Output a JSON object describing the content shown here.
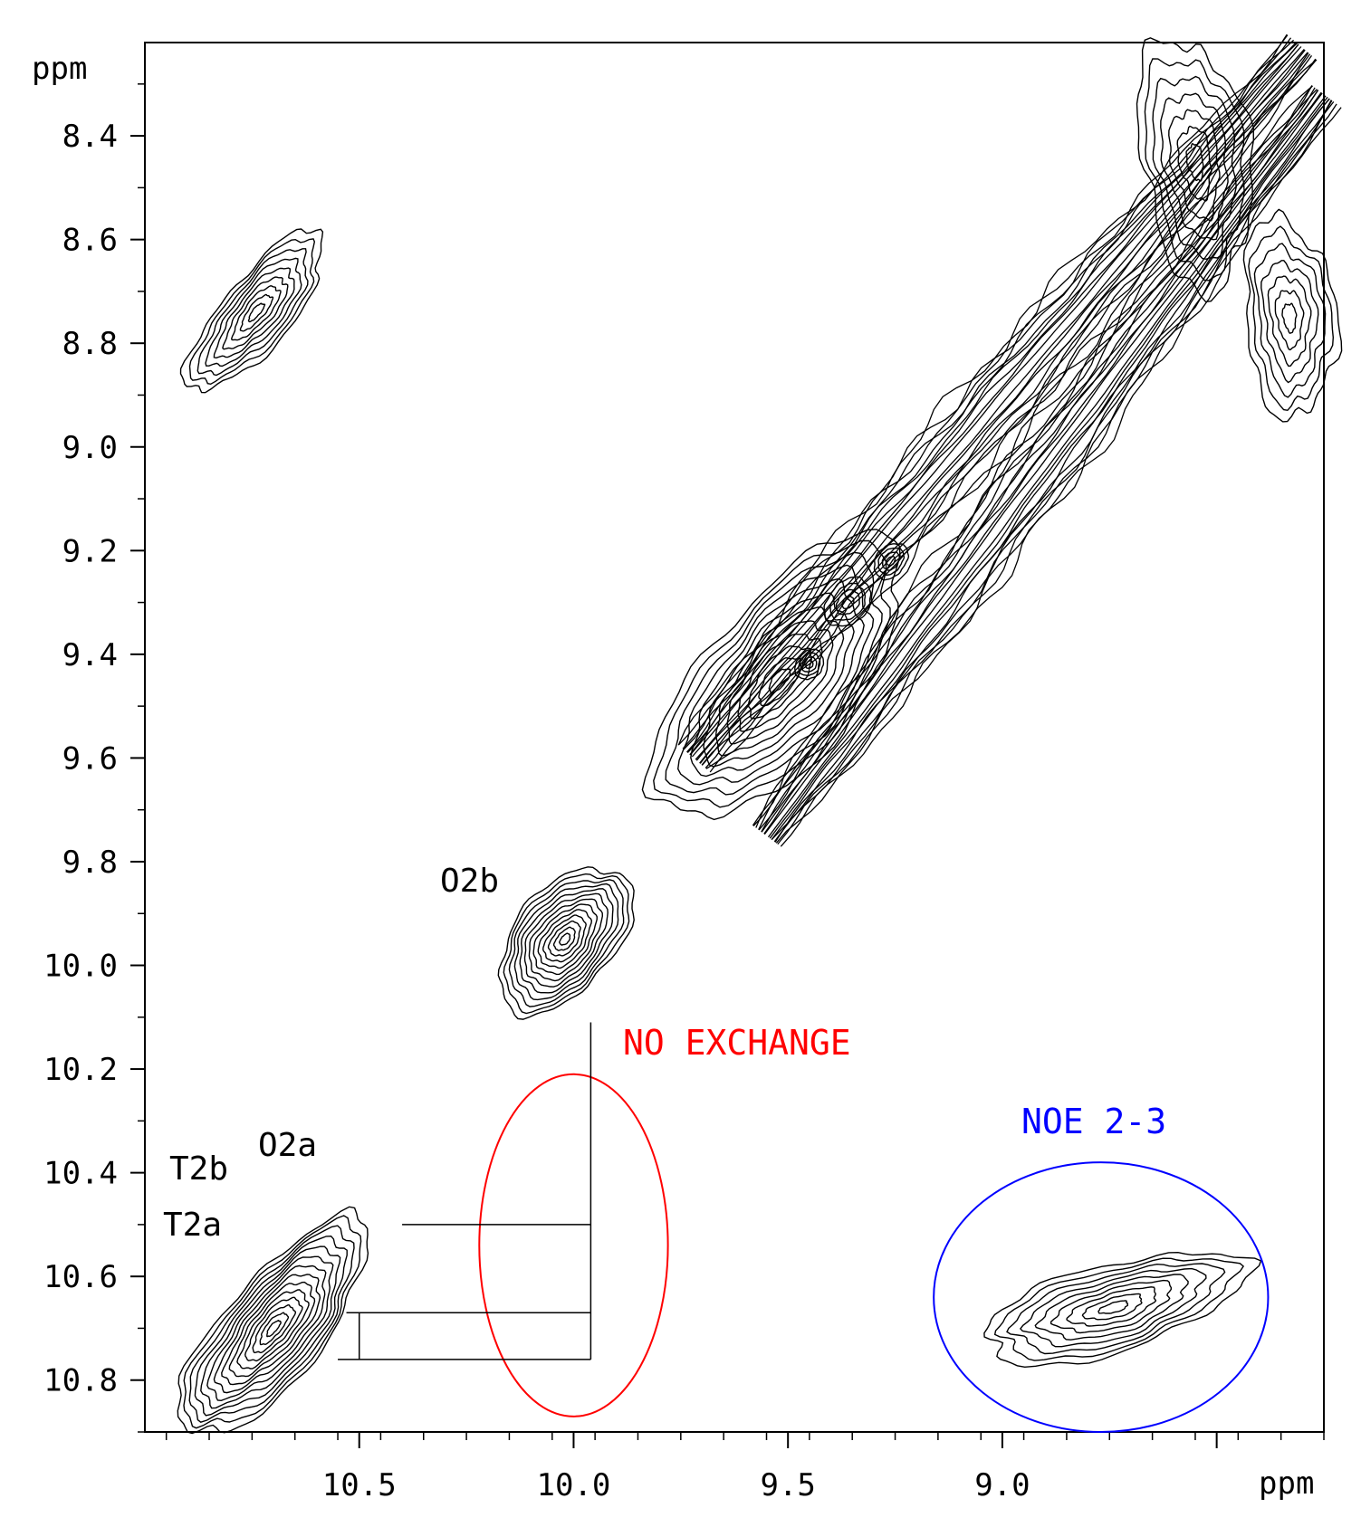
{
  "chart_data": {
    "type": "contour",
    "x_axis": {
      "label": "ppm",
      "range": [
        11.0,
        8.25
      ],
      "reversed": true,
      "major_ticks": [
        10.5,
        10.0,
        9.5,
        9.0
      ],
      "tick_labels": [
        "10.5",
        "10.0",
        "9.5",
        "9.0"
      ],
      "extra_major_ticks": [
        8.5
      ]
    },
    "y_axis": {
      "label": "ppm",
      "range": [
        8.22,
        10.9
      ],
      "reversed": true,
      "major_ticks": [
        8.4,
        8.6,
        8.8,
        9.0,
        9.2,
        9.4,
        9.6,
        9.8,
        10.0,
        10.2,
        10.4,
        10.6,
        10.8
      ],
      "tick_labels": [
        "8.4",
        "8.6",
        "8.8",
        "9.0",
        "9.2",
        "9.4",
        "9.6",
        "9.8",
        "10.0",
        "10.2",
        "10.4",
        "10.6",
        "10.8"
      ]
    },
    "peak_labels": [
      {
        "text": "O2b",
        "x": 10.2,
        "y": 9.84
      },
      {
        "text": "O2a",
        "x": 10.6,
        "y": 10.33
      },
      {
        "text": "T2b",
        "x": 10.81,
        "y": 10.37
      },
      {
        "text": "T2a",
        "x": 10.83,
        "y": 10.48
      }
    ],
    "annotations": [
      {
        "text": "NO EXCHANGE",
        "color": "#ff0000",
        "x": 9.54,
        "y": 10.12
      },
      {
        "text": "NOE 2-3",
        "color": "#0000ff",
        "x": 8.76,
        "y": 10.36
      }
    ],
    "regions": [
      {
        "shape": "ellipse",
        "color": "#ff0000",
        "cx": 10.0,
        "cy": 10.54,
        "rx": 0.22,
        "ry": 0.33
      },
      {
        "shape": "ellipse",
        "color": "#0000ff",
        "cx": 8.77,
        "cy": 10.64,
        "rx": 0.39,
        "ry": 0.26
      }
    ],
    "connector": {
      "vertical_x": 9.96,
      "vertical_y": [
        10.11,
        10.76
      ],
      "horizontal": [
        {
          "y": 10.5,
          "x": [
            10.4,
            9.96
          ]
        },
        {
          "y": 10.67,
          "x": [
            10.53,
            9.96
          ]
        },
        {
          "y": 10.76,
          "x": [
            10.55,
            9.96
          ]
        }
      ],
      "short_vertical": {
        "x": 10.5,
        "y": [
          10.67,
          10.76
        ]
      }
    },
    "contour_regions": [
      {
        "name": "diagonal-upper-band",
        "from": [
          9.7,
          9.65
        ],
        "to": [
          8.3,
          8.23
        ]
      },
      {
        "name": "diagonal-lower-band",
        "from": [
          9.55,
          9.72
        ],
        "to": [
          8.25,
          8.32
        ]
      },
      {
        "name": "diagonal-cluster",
        "cx": 9.5,
        "cy": 9.45
      },
      {
        "name": "O2b-peak",
        "cx": 10.02,
        "cy": 9.95
      },
      {
        "name": "T2-O2-peak",
        "cx": 10.7,
        "cy": 10.7
      },
      {
        "name": "cross-peak-upper-left",
        "cx": 10.74,
        "cy": 8.74
      },
      {
        "name": "cross-peak-NOE",
        "cx": 8.75,
        "cy": 10.66
      },
      {
        "name": "cross-peak-upper-right",
        "cx": 8.5,
        "cy": 8.55
      }
    ],
    "grid": false,
    "legend": "none"
  }
}
